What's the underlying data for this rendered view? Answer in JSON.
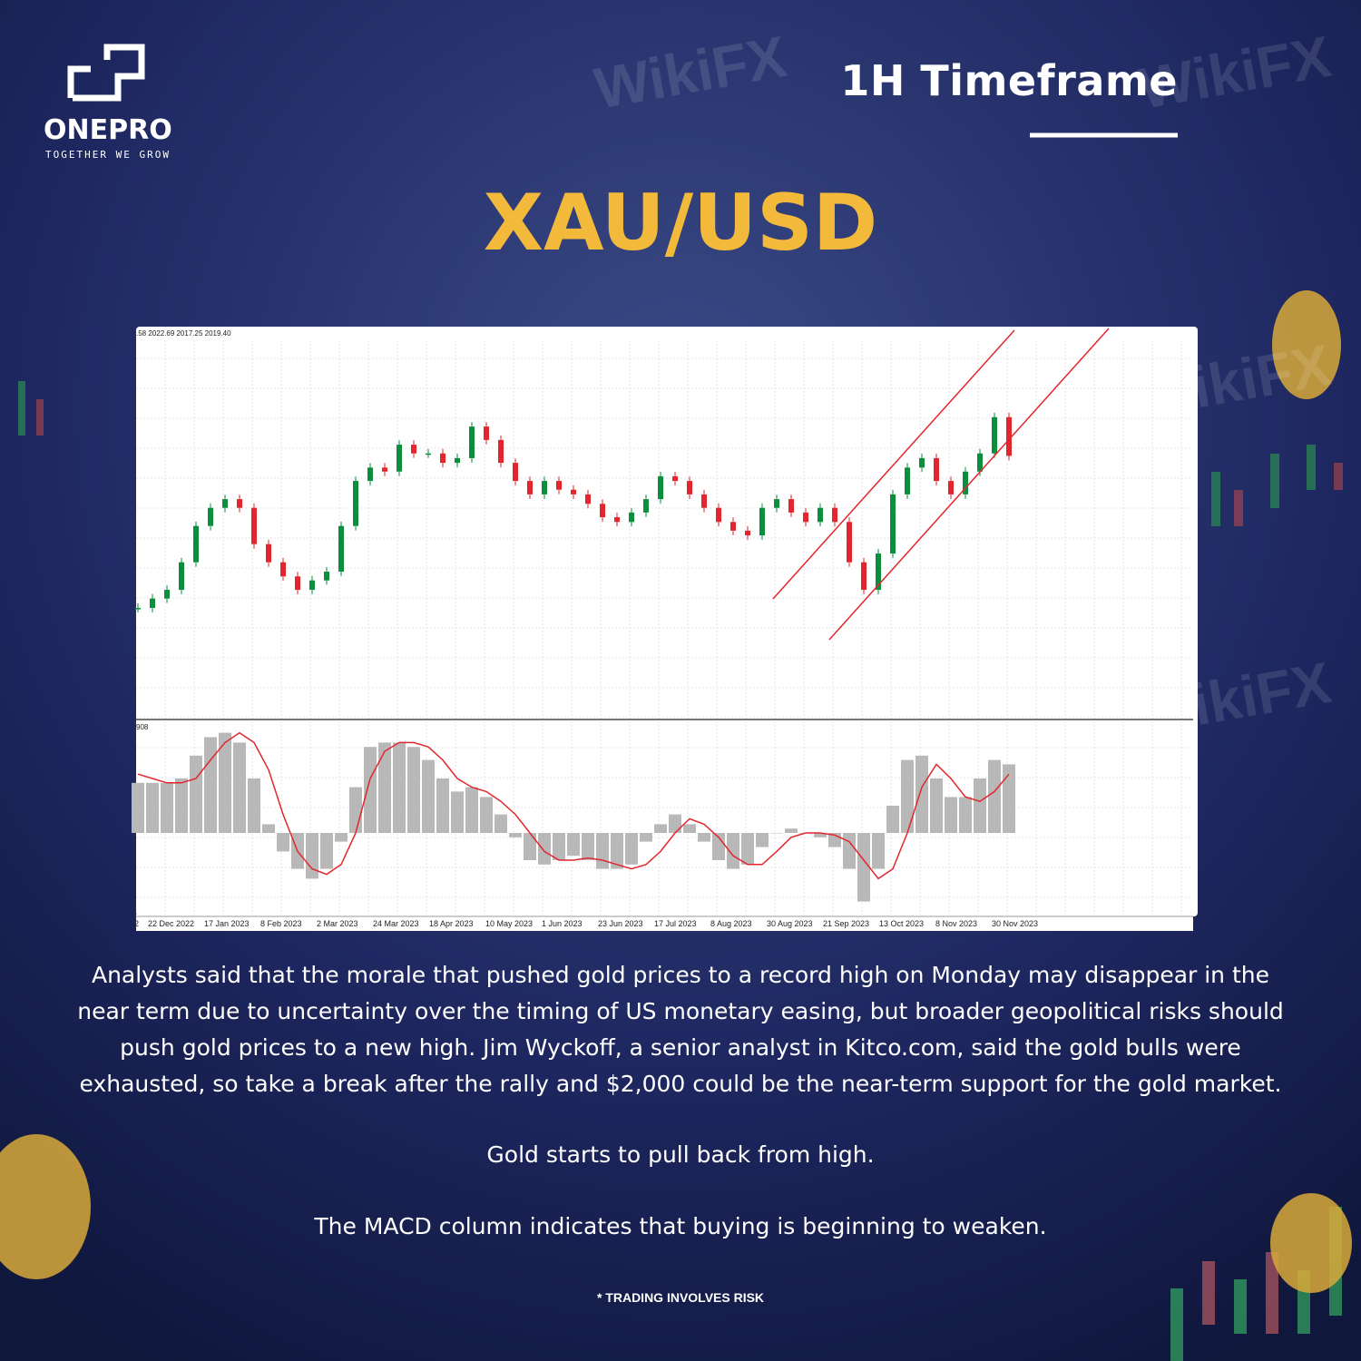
{
  "header": {
    "logo_name": "ONEPRO",
    "logo_tagline": "TOGETHER WE GROW",
    "timeframe": "1H Timeframe"
  },
  "title": "XAU/USD",
  "watermark": "WikiFX",
  "chart_data": {
    "type": "candlestick",
    "ohlc_label": ".58 2022.69 2017.25 2019.40",
    "macd_label": "908",
    "x_labels": [
      "2",
      "22 Dec 2022",
      "17 Jan 2023",
      "8 Feb 2023",
      "2 Mar 2023",
      "24 Mar 2023",
      "18 Apr 2023",
      "10 May 2023",
      "1 Jun 2023",
      "23 Jun 2023",
      "17 Jul 2023",
      "8 Aug 2023",
      "30 Aug 2023",
      "21 Sep 2023",
      "13 Oct 2023",
      "8 Nov 2023",
      "30 Nov 2023"
    ],
    "values": [
      1793,
      1807,
      1820,
      1861,
      1915,
      1942,
      1955,
      1942,
      1888,
      1861,
      1840,
      1820,
      1834,
      1847,
      1915,
      1982,
      2002,
      1996,
      2036,
      2023,
      2023,
      2009,
      2016,
      2063,
      2043,
      2009,
      1982,
      1962,
      1982,
      1969,
      1962,
      1948,
      1928,
      1921,
      1935,
      1955,
      1989,
      1982,
      1962,
      1942,
      1921,
      1908,
      1901,
      1942,
      1955,
      1935,
      1921,
      1942,
      1921,
      1861,
      1820,
      1874,
      1962,
      2002,
      2016,
      1982,
      1962,
      1996,
      2023,
      2077,
      2019.4
    ],
    "up_color": "#0b8f3c",
    "down_color": "#e3262e",
    "ylim": [
      1631,
      2209
    ],
    "macd": {
      "values": [
        4.6,
        4.6,
        4.6,
        5.0,
        7.1,
        8.8,
        9.2,
        8.3,
        5.0,
        0.8,
        -1.7,
        -3.3,
        -4.2,
        -3.3,
        -0.8,
        4.2,
        7.9,
        8.3,
        8.3,
        7.9,
        6.7,
        5.0,
        3.8,
        4.2,
        3.3,
        1.7,
        -0.4,
        -2.5,
        -2.9,
        -2.5,
        -2.1,
        -2.5,
        -3.3,
        -3.3,
        -2.9,
        -0.8,
        0.8,
        1.7,
        0.8,
        -0.8,
        -2.5,
        -3.3,
        -2.9,
        -1.3,
        0,
        0.4,
        0,
        -0.4,
        -1.3,
        -3.3,
        -6.3,
        -3.3,
        2.5,
        6.7,
        7.1,
        5.0,
        3.3,
        3.3,
        5.0,
        6.7,
        6.3
      ],
      "signal": [
        5.4,
        5.0,
        4.6,
        4.6,
        5.0,
        6.7,
        8.3,
        9.2,
        8.3,
        5.8,
        1.7,
        -1.7,
        -3.3,
        -3.8,
        -2.9,
        0,
        5.0,
        7.5,
        8.3,
        8.3,
        7.9,
        6.7,
        5.0,
        4.2,
        3.8,
        2.9,
        1.7,
        0,
        -1.7,
        -2.5,
        -2.5,
        -2.3,
        -2.5,
        -2.9,
        -3.3,
        -2.9,
        -1.7,
        0,
        1.3,
        0.8,
        -0.4,
        -2.1,
        -2.9,
        -2.9,
        -1.7,
        -0.4,
        0,
        0,
        -0.2,
        -0.8,
        -2.5,
        -4.2,
        -3.3,
        0,
        4.2,
        6.3,
        5.0,
        3.3,
        2.9,
        3.8,
        5.4
      ],
      "hist_color": "#b8b8b8",
      "signal_color": "#e3262e",
      "ylim": [
        -7.25,
        10.25
      ]
    }
  },
  "paragraphs": [
    "Analysts said that the morale that pushed gold prices to a record high on Monday may disappear in the near term due to uncertainty over the timing of US monetary easing, but broader geopolitical risks should push gold prices to a new high. Jim Wyckoff, a senior analyst in Kitco.com, said the gold bulls were exhausted, so take a break after the rally and $2,000 could be the near-term support for the gold market.",
    "Gold starts to pull back from high.",
    "The MACD column indicates that buying is beginning to weaken."
  ],
  "footer": "* TRADING INVOLVES RISK"
}
